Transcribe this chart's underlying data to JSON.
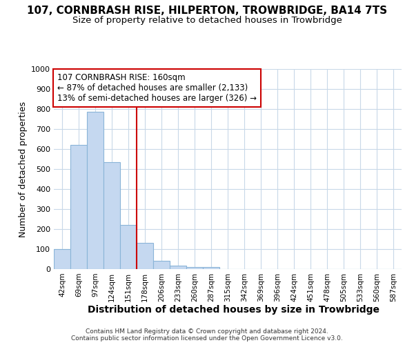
{
  "title": "107, CORNBRASH RISE, HILPERTON, TROWBRIDGE, BA14 7TS",
  "subtitle": "Size of property relative to detached houses in Trowbridge",
  "xlabel": "Distribution of detached houses by size in Trowbridge",
  "ylabel": "Number of detached properties",
  "categories": [
    "42sqm",
    "69sqm",
    "97sqm",
    "124sqm",
    "151sqm",
    "178sqm",
    "206sqm",
    "233sqm",
    "260sqm",
    "287sqm",
    "315sqm",
    "342sqm",
    "369sqm",
    "396sqm",
    "424sqm",
    "451sqm",
    "478sqm",
    "505sqm",
    "533sqm",
    "560sqm",
    "587sqm"
  ],
  "values": [
    100,
    620,
    785,
    535,
    220,
    130,
    40,
    18,
    10,
    10,
    0,
    0,
    0,
    0,
    0,
    0,
    0,
    0,
    0,
    0,
    0
  ],
  "bar_color": "#c5d8f0",
  "bar_edge_color": "#8ab4d8",
  "bar_width": 1.0,
  "ylim": [
    0,
    1000
  ],
  "yticks": [
    0,
    100,
    200,
    300,
    400,
    500,
    600,
    700,
    800,
    900,
    1000
  ],
  "vline_x": 4.5,
  "vline_color": "#cc0000",
  "annotation_line1": "107 CORNBRASH RISE: 160sqm",
  "annotation_line2": "← 87% of detached houses are smaller (2,133)",
  "annotation_line3": "13% of semi-detached houses are larger (326) →",
  "annotation_box_color": "#ffffff",
  "annotation_box_edge": "#cc0000",
  "background_color": "#ffffff",
  "grid_color": "#c8d8e8",
  "footer_text": "Contains HM Land Registry data © Crown copyright and database right 2024.\nContains public sector information licensed under the Open Government Licence v3.0.",
  "title_fontsize": 11,
  "subtitle_fontsize": 9.5,
  "xlabel_fontsize": 10,
  "ylabel_fontsize": 9,
  "annotation_fontsize": 8.5
}
